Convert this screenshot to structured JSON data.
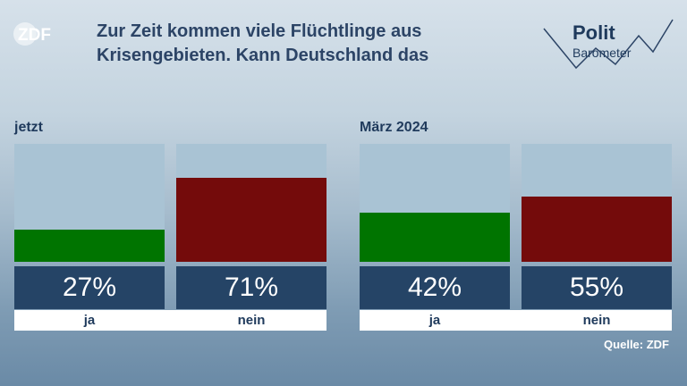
{
  "header": {
    "logo": "ZDF",
    "title": "Zur Zeit kommen viele Flüchtlinge aus Krisengebieten. Kann Deutschland das",
    "brand_line1": "Polit",
    "brand_line2": "Barometer"
  },
  "source": "Quelle: ZDF",
  "colors": {
    "ja": "#007400",
    "nein": "#740b0b",
    "track": "#a9c3d4",
    "value_box": "#254466"
  },
  "chart_data": {
    "type": "bar",
    "ylim": [
      0,
      100
    ],
    "unit": "%",
    "groups": [
      {
        "label": "jetzt",
        "bars": [
          {
            "category": "ja",
            "value": 27,
            "display": "27%"
          },
          {
            "category": "nein",
            "value": 71,
            "display": "71%"
          }
        ]
      },
      {
        "label": "März 2024",
        "bars": [
          {
            "category": "ja",
            "value": 42,
            "display": "42%"
          },
          {
            "category": "nein",
            "value": 55,
            "display": "55%"
          }
        ]
      }
    ]
  }
}
